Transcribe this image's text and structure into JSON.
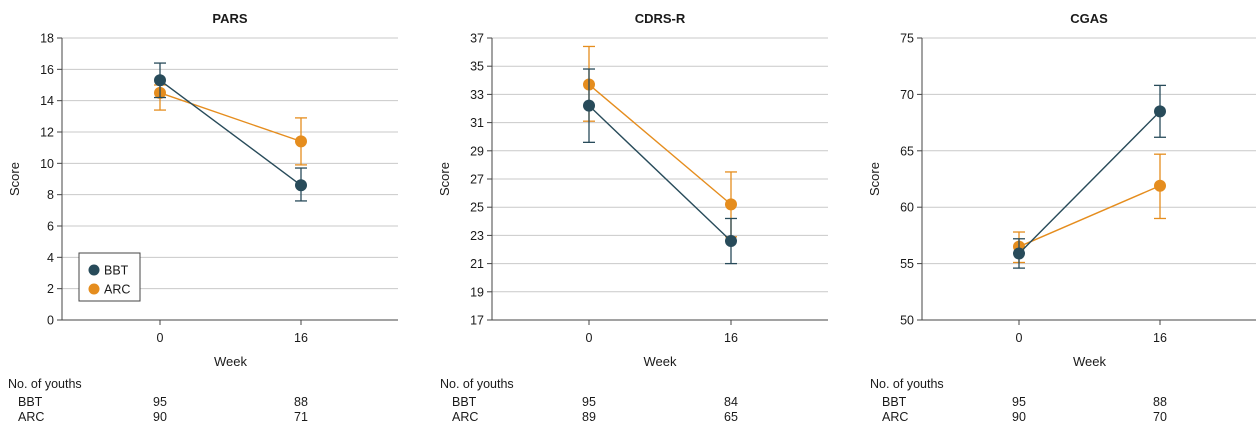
{
  "colors": {
    "BBT": "#284B5A",
    "ARC": "#E58D1E"
  },
  "x_label": "Week",
  "legend": [
    {
      "name": "BBT"
    },
    {
      "name": "ARC"
    }
  ],
  "youths": {
    "title": "No. of youths",
    "panels": [
      {
        "rows": [
          {
            "group": "BBT",
            "counts": [
              "95",
              "88"
            ]
          },
          {
            "group": "ARC",
            "counts": [
              "90",
              "71"
            ]
          }
        ]
      },
      {
        "rows": [
          {
            "group": "BBT",
            "counts": [
              "95",
              "84"
            ]
          },
          {
            "group": "ARC",
            "counts": [
              "89",
              "65"
            ]
          }
        ]
      },
      {
        "rows": [
          {
            "group": "BBT",
            "counts": [
              "95",
              "88"
            ]
          },
          {
            "group": "ARC",
            "counts": [
              "90",
              "70"
            ]
          }
        ]
      }
    ]
  },
  "chart_data": [
    {
      "type": "line",
      "title": "PARS",
      "xlabel": "Week",
      "ylabel": "Score",
      "x": [
        "0",
        "16"
      ],
      "ylim": [
        0,
        18
      ],
      "yticks": [
        0,
        2,
        4,
        6,
        8,
        10,
        12,
        14,
        16,
        18
      ],
      "grid": true,
      "legend_position": "bottom-left",
      "series": [
        {
          "name": "BBT",
          "values": [
            15.3,
            8.6
          ],
          "lower": [
            14.2,
            7.6
          ],
          "upper": [
            16.4,
            9.7
          ]
        },
        {
          "name": "ARC",
          "values": [
            14.5,
            11.4
          ],
          "lower": [
            13.4,
            9.9
          ],
          "upper": [
            15.0,
            12.9
          ]
        }
      ]
    },
    {
      "type": "line",
      "title": "CDRS-R",
      "xlabel": "Week",
      "ylabel": "Score",
      "x": [
        "0",
        "16"
      ],
      "ylim": [
        17,
        37
      ],
      "yticks": [
        17,
        19,
        21,
        23,
        25,
        27,
        29,
        31,
        33,
        35,
        37
      ],
      "grid": true,
      "series": [
        {
          "name": "BBT",
          "values": [
            32.2,
            22.6
          ],
          "lower": [
            29.6,
            21.0
          ],
          "upper": [
            34.8,
            24.2
          ]
        },
        {
          "name": "ARC",
          "values": [
            33.7,
            25.2
          ],
          "lower": [
            31.1,
            22.9
          ],
          "upper": [
            36.4,
            27.5
          ]
        }
      ]
    },
    {
      "type": "line",
      "title": "CGAS",
      "xlabel": "Week",
      "ylabel": "Score",
      "x": [
        "0",
        "16"
      ],
      "ylim": [
        50,
        75
      ],
      "yticks": [
        50,
        55,
        60,
        65,
        70,
        75
      ],
      "grid": true,
      "series": [
        {
          "name": "BBT",
          "values": [
            55.9,
            68.5
          ],
          "lower": [
            54.6,
            66.2
          ],
          "upper": [
            57.2,
            70.8
          ]
        },
        {
          "name": "ARC",
          "values": [
            56.5,
            61.9
          ],
          "lower": [
            55.1,
            59.0
          ],
          "upper": [
            57.8,
            64.7
          ]
        }
      ]
    }
  ]
}
